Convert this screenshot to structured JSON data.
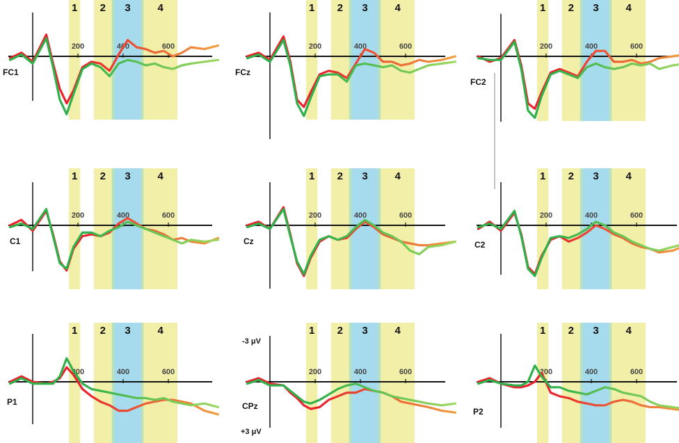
{
  "colors": {
    "window_yellow": "#f2f0a8",
    "window_blue": "#a6dbed",
    "overlap_green": "#bde3b0",
    "series_red": "#e8232d",
    "series_orange": "#f0a040",
    "series_green": "#2fb04a",
    "series_lightgreen": "#9fd860",
    "axis": "#111111"
  },
  "chart_data": {
    "type": "line",
    "x_unit": "ms",
    "xlim": [
      -100,
      820
    ],
    "ylim_uV": [
      -3,
      3
    ],
    "y_inverted": true,
    "windows": [
      {
        "label": "1",
        "start": 160,
        "end": 210,
        "color": "yellow"
      },
      {
        "label": "2",
        "start": 270,
        "end": 350,
        "color": "yellow"
      },
      {
        "label": "3",
        "start": 350,
        "end": 490,
        "color": "blue"
      },
      {
        "label": "4",
        "start": 490,
        "end": 640,
        "color": "yellow"
      }
    ],
    "tick_labels": [
      "200",
      "400",
      "600"
    ],
    "tick_values": [
      200,
      400,
      600
    ],
    "scale_labels": {
      "top": "-3 μV",
      "bottom": "+3 μV"
    },
    "series_colors": {
      "a": [
        "#e8232d",
        "#f0a040"
      ],
      "b": [
        "#2fb04a",
        "#9fd860"
      ]
    },
    "panels": [
      {
        "channel": "FC1",
        "x": [
          -100,
          -50,
          0,
          60,
          90,
          120,
          150,
          180,
          220,
          260,
          300,
          340,
          380,
          420,
          460,
          500,
          540,
          580,
          620,
          660,
          700,
          760,
          820
        ],
        "a": [
          0.1,
          -0.2,
          0.3,
          -1.2,
          0.4,
          1.8,
          2.6,
          1.9,
          0.6,
          0.3,
          0.4,
          0.8,
          -0.1,
          -0.9,
          -0.5,
          -0.4,
          -0.2,
          -0.3,
          0,
          -0.2,
          -0.5,
          -0.4,
          -0.6
        ],
        "b": [
          0.2,
          -0.1,
          0.4,
          -1.0,
          0.6,
          2.4,
          3.2,
          2.1,
          0.7,
          0.4,
          0.6,
          1.1,
          0.4,
          0.2,
          0.3,
          0.5,
          0.4,
          0.6,
          0.7,
          0.5,
          0.4,
          0.3,
          0.2
        ]
      },
      {
        "channel": "FCz",
        "x": [
          -100,
          -50,
          0,
          60,
          90,
          120,
          150,
          180,
          220,
          260,
          300,
          340,
          380,
          420,
          460,
          500,
          540,
          580,
          620,
          660,
          700,
          760,
          820
        ],
        "a": [
          0,
          -0.2,
          0.2,
          -1.1,
          0.3,
          2.4,
          2.8,
          2.0,
          1.0,
          0.8,
          0.9,
          1.2,
          0.4,
          -0.4,
          -0.2,
          0.3,
          0.3,
          0.5,
          0.4,
          0.2,
          0.3,
          0.2,
          0
        ],
        "b": [
          0.1,
          -0.1,
          0.3,
          -0.9,
          0.5,
          2.6,
          3.3,
          2.3,
          1.1,
          1.0,
          1.0,
          1.4,
          0.5,
          0.4,
          0.5,
          0.6,
          0.5,
          0.8,
          0.9,
          0.7,
          0.5,
          0.4,
          0.3
        ]
      },
      {
        "channel": "FC2",
        "x": [
          -100,
          -50,
          0,
          60,
          90,
          120,
          150,
          180,
          220,
          260,
          300,
          340,
          380,
          420,
          460,
          500,
          540,
          580,
          620,
          660,
          700,
          760,
          820
        ],
        "a": [
          0,
          0.3,
          0.1,
          -0.9,
          0.5,
          2.6,
          2.9,
          2.0,
          0.9,
          0.7,
          0.9,
          1.1,
          0.3,
          -0.3,
          -0.3,
          0.3,
          0.3,
          0.2,
          0.4,
          0.3,
          0.1,
          0,
          -0.1
        ],
        "b": [
          0.1,
          0.2,
          0.2,
          -0.8,
          0.7,
          3.0,
          3.4,
          2.2,
          1.0,
          0.8,
          1.0,
          1.2,
          0.6,
          0.4,
          0.6,
          0.7,
          0.6,
          0.4,
          0.5,
          0.4,
          0.7,
          0.5,
          0.4
        ]
      },
      {
        "channel": "C1",
        "x": [
          -100,
          -50,
          0,
          60,
          90,
          120,
          150,
          180,
          220,
          260,
          300,
          340,
          380,
          420,
          460,
          500,
          540,
          580,
          620,
          660,
          700,
          760,
          820
        ],
        "a": [
          0,
          -0.3,
          0.3,
          -0.8,
          0.5,
          2.0,
          2.5,
          1.3,
          0.6,
          0.5,
          0.6,
          0.4,
          -0.1,
          -0.4,
          -0.1,
          0.2,
          0.3,
          0.5,
          0.8,
          0.7,
          0.9,
          1.0,
          0.7
        ],
        "b": [
          0.1,
          -0.1,
          0.2,
          -0.9,
          0.6,
          2.1,
          2.4,
          1.2,
          0.4,
          0.4,
          0.6,
          0.3,
          0.1,
          -0.2,
          0.0,
          0.2,
          0.4,
          0.6,
          0.8,
          1.0,
          0.8,
          0.9,
          0.8
        ]
      },
      {
        "channel": "Cz",
        "x": [
          -100,
          -50,
          0,
          60,
          90,
          120,
          150,
          180,
          220,
          260,
          300,
          340,
          380,
          420,
          460,
          500,
          540,
          580,
          620,
          660,
          700,
          760,
          820
        ],
        "a": [
          0,
          -0.2,
          0.2,
          -1.0,
          0.5,
          2.1,
          2.8,
          1.8,
          0.9,
          0.6,
          0.8,
          0.7,
          0.2,
          -0.2,
          0.1,
          0.5,
          0.7,
          0.9,
          1.0,
          1.1,
          1.1,
          1.0,
          0.9
        ],
        "b": [
          0.1,
          -0.1,
          0.2,
          -0.9,
          0.6,
          2.0,
          2.7,
          1.7,
          0.8,
          0.6,
          0.8,
          0.6,
          0.1,
          -0.3,
          0.0,
          0.4,
          0.6,
          0.9,
          1.4,
          1.6,
          1.2,
          1.1,
          0.9
        ]
      },
      {
        "channel": "C2",
        "x": [
          -100,
          -50,
          0,
          60,
          90,
          120,
          150,
          180,
          220,
          260,
          300,
          340,
          380,
          420,
          460,
          500,
          540,
          580,
          620,
          660,
          700,
          760,
          820
        ],
        "a": [
          0.2,
          -0.2,
          0.3,
          -0.7,
          0.5,
          2.3,
          2.7,
          1.7,
          0.8,
          0.6,
          0.9,
          0.7,
          0.4,
          0.0,
          0.2,
          0.5,
          0.7,
          1.0,
          1.2,
          1.3,
          1.5,
          1.4,
          1.1
        ],
        "b": [
          0.1,
          -0.1,
          0.2,
          -0.8,
          0.6,
          2.4,
          2.8,
          1.8,
          0.7,
          0.6,
          0.7,
          0.5,
          0.2,
          -0.2,
          0.0,
          0.4,
          0.6,
          0.9,
          1.1,
          1.3,
          1.4,
          1.2,
          1.0
        ]
      },
      {
        "channel": "P1",
        "x": [
          -100,
          -50,
          0,
          60,
          90,
          120,
          150,
          180,
          220,
          260,
          300,
          340,
          380,
          420,
          460,
          500,
          540,
          580,
          620,
          660,
          700,
          760,
          820
        ],
        "a": [
          0,
          -0.3,
          0,
          0.1,
          0.0,
          -0.2,
          -0.8,
          -0.4,
          0.4,
          0.8,
          1.1,
          1.3,
          1.6,
          1.6,
          1.4,
          1.2,
          1.1,
          1.0,
          1.0,
          1.1,
          1.2,
          1.6,
          1.8
        ],
        "b": [
          0.1,
          -0.2,
          0.1,
          0.1,
          0.1,
          -0.3,
          -1.3,
          -0.6,
          0.1,
          0.4,
          0.5,
          0.6,
          0.7,
          0.8,
          0.9,
          0.9,
          1.0,
          0.9,
          1.1,
          1.2,
          1.3,
          1.2,
          1.4
        ]
      },
      {
        "channel": "CPz",
        "x": [
          -100,
          -50,
          0,
          60,
          90,
          120,
          150,
          180,
          220,
          260,
          300,
          340,
          380,
          420,
          460,
          500,
          540,
          580,
          620,
          660,
          700,
          760,
          820
        ],
        "a": [
          0,
          -0.2,
          0.1,
          0.2,
          0.6,
          0.9,
          1.3,
          1.5,
          1.4,
          1.0,
          0.8,
          0.6,
          0.6,
          0.4,
          0.5,
          0.6,
          0.8,
          1.1,
          1.2,
          1.3,
          1.4,
          1.6,
          1.7
        ],
        "b": [
          0.1,
          -0.1,
          0.2,
          0.2,
          0.5,
          0.8,
          1.1,
          1.2,
          1.0,
          0.7,
          0.4,
          0.2,
          0.1,
          0.3,
          0.5,
          0.6,
          0.8,
          0.9,
          1.0,
          1.1,
          1.2,
          1.3,
          1.2
        ]
      },
      {
        "channel": "P2",
        "x": [
          -100,
          -50,
          0,
          60,
          90,
          120,
          150,
          180,
          220,
          260,
          300,
          340,
          380,
          420,
          460,
          500,
          540,
          580,
          620,
          660,
          700,
          760,
          820
        ],
        "a": [
          0,
          -0.2,
          0.1,
          0.3,
          0.3,
          0.2,
          0.0,
          -0.5,
          0.6,
          0.8,
          0.9,
          1.1,
          1.2,
          1.3,
          1.3,
          1.1,
          1.0,
          1.1,
          1.3,
          1.4,
          1.4,
          1.5,
          1.6
        ],
        "b": [
          0.1,
          -0.1,
          0.1,
          0.2,
          0.2,
          0.0,
          -0.9,
          -0.3,
          0.3,
          0.3,
          0.5,
          0.6,
          0.7,
          0.5,
          0.3,
          0.4,
          0.6,
          0.7,
          0.8,
          1.1,
          1.3,
          1.4,
          1.5
        ]
      }
    ]
  }
}
